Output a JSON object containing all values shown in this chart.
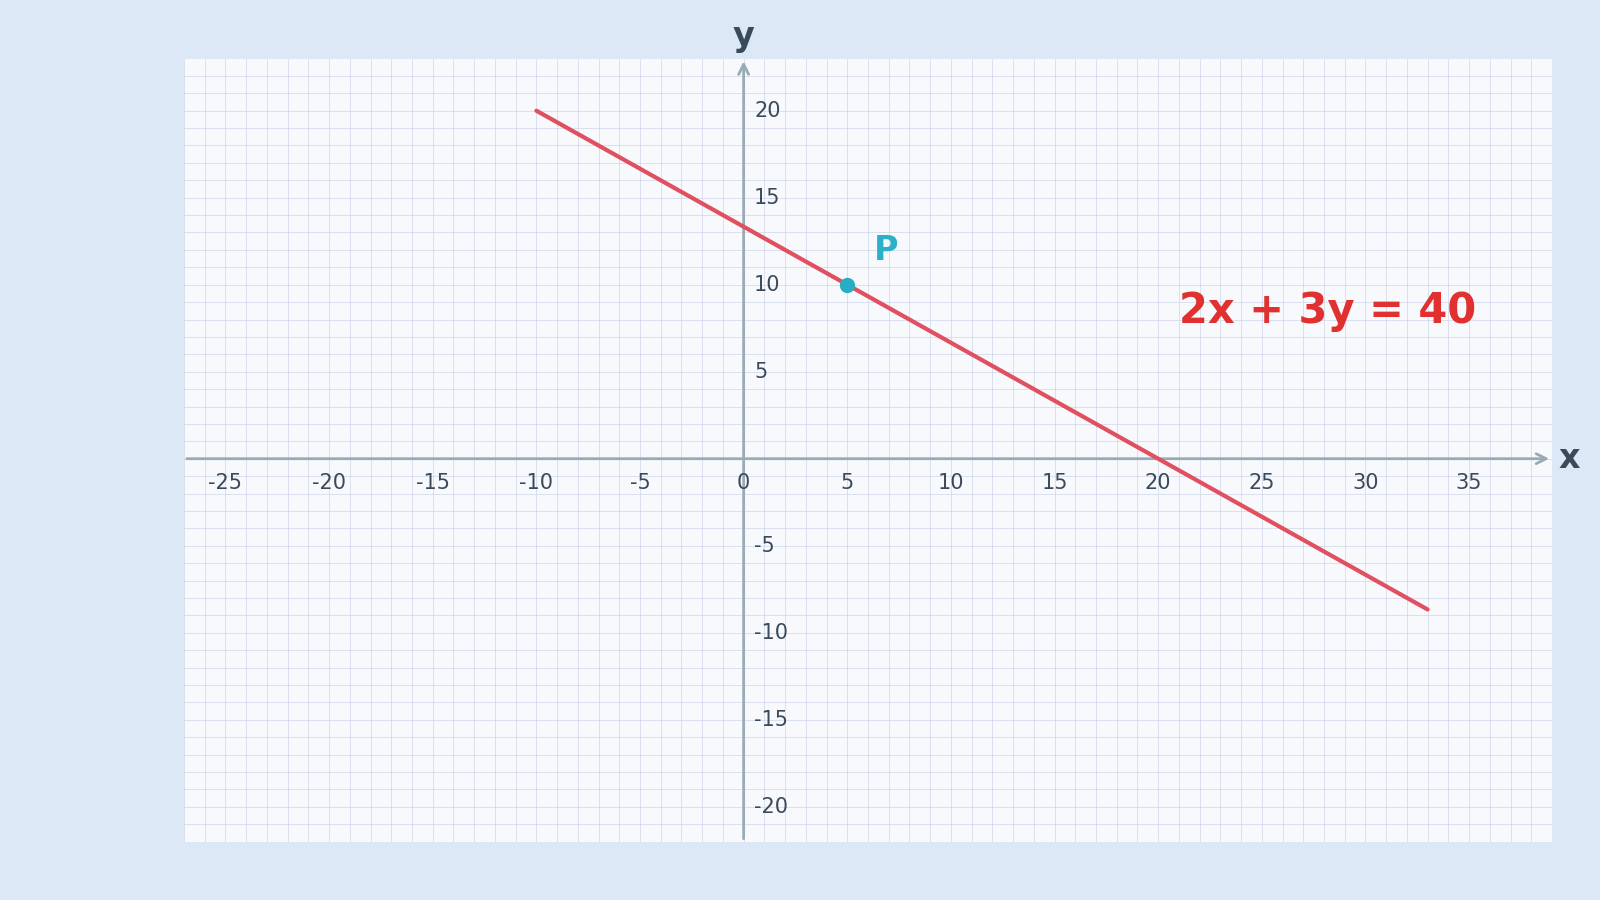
{
  "bg_outer": "#dce8f5",
  "bg_inner": "#f8f9fc",
  "grid_color": "#cdd6e8",
  "axis_color": "#9aabb8",
  "tick_color": "#3a4a5a",
  "line_color": "#e05060",
  "point_color": "#29adc5",
  "point_x": 5,
  "point_y": 10,
  "point_label": "P",
  "point_label_color": "#2ab0c8",
  "equation_text": "2x + 3y = 40",
  "equation_color": "#e03030",
  "equation_x": 21,
  "equation_y": 8.5,
  "xlabel": "x",
  "ylabel": "y",
  "xlim": [
    -27,
    39
  ],
  "ylim": [
    -22,
    23
  ],
  "xticks": [
    -25,
    -20,
    -15,
    -10,
    -5,
    0,
    5,
    10,
    15,
    20,
    25,
    30,
    35
  ],
  "yticks": [
    -20,
    -15,
    -10,
    -5,
    5,
    10,
    15,
    20
  ],
  "line_x1": -10,
  "line_x2": 33,
  "label_fontsize": 24,
  "tick_fontsize": 15,
  "point_label_fontsize": 24,
  "equation_fontsize": 30,
  "line_width": 3.0,
  "point_size": 10
}
